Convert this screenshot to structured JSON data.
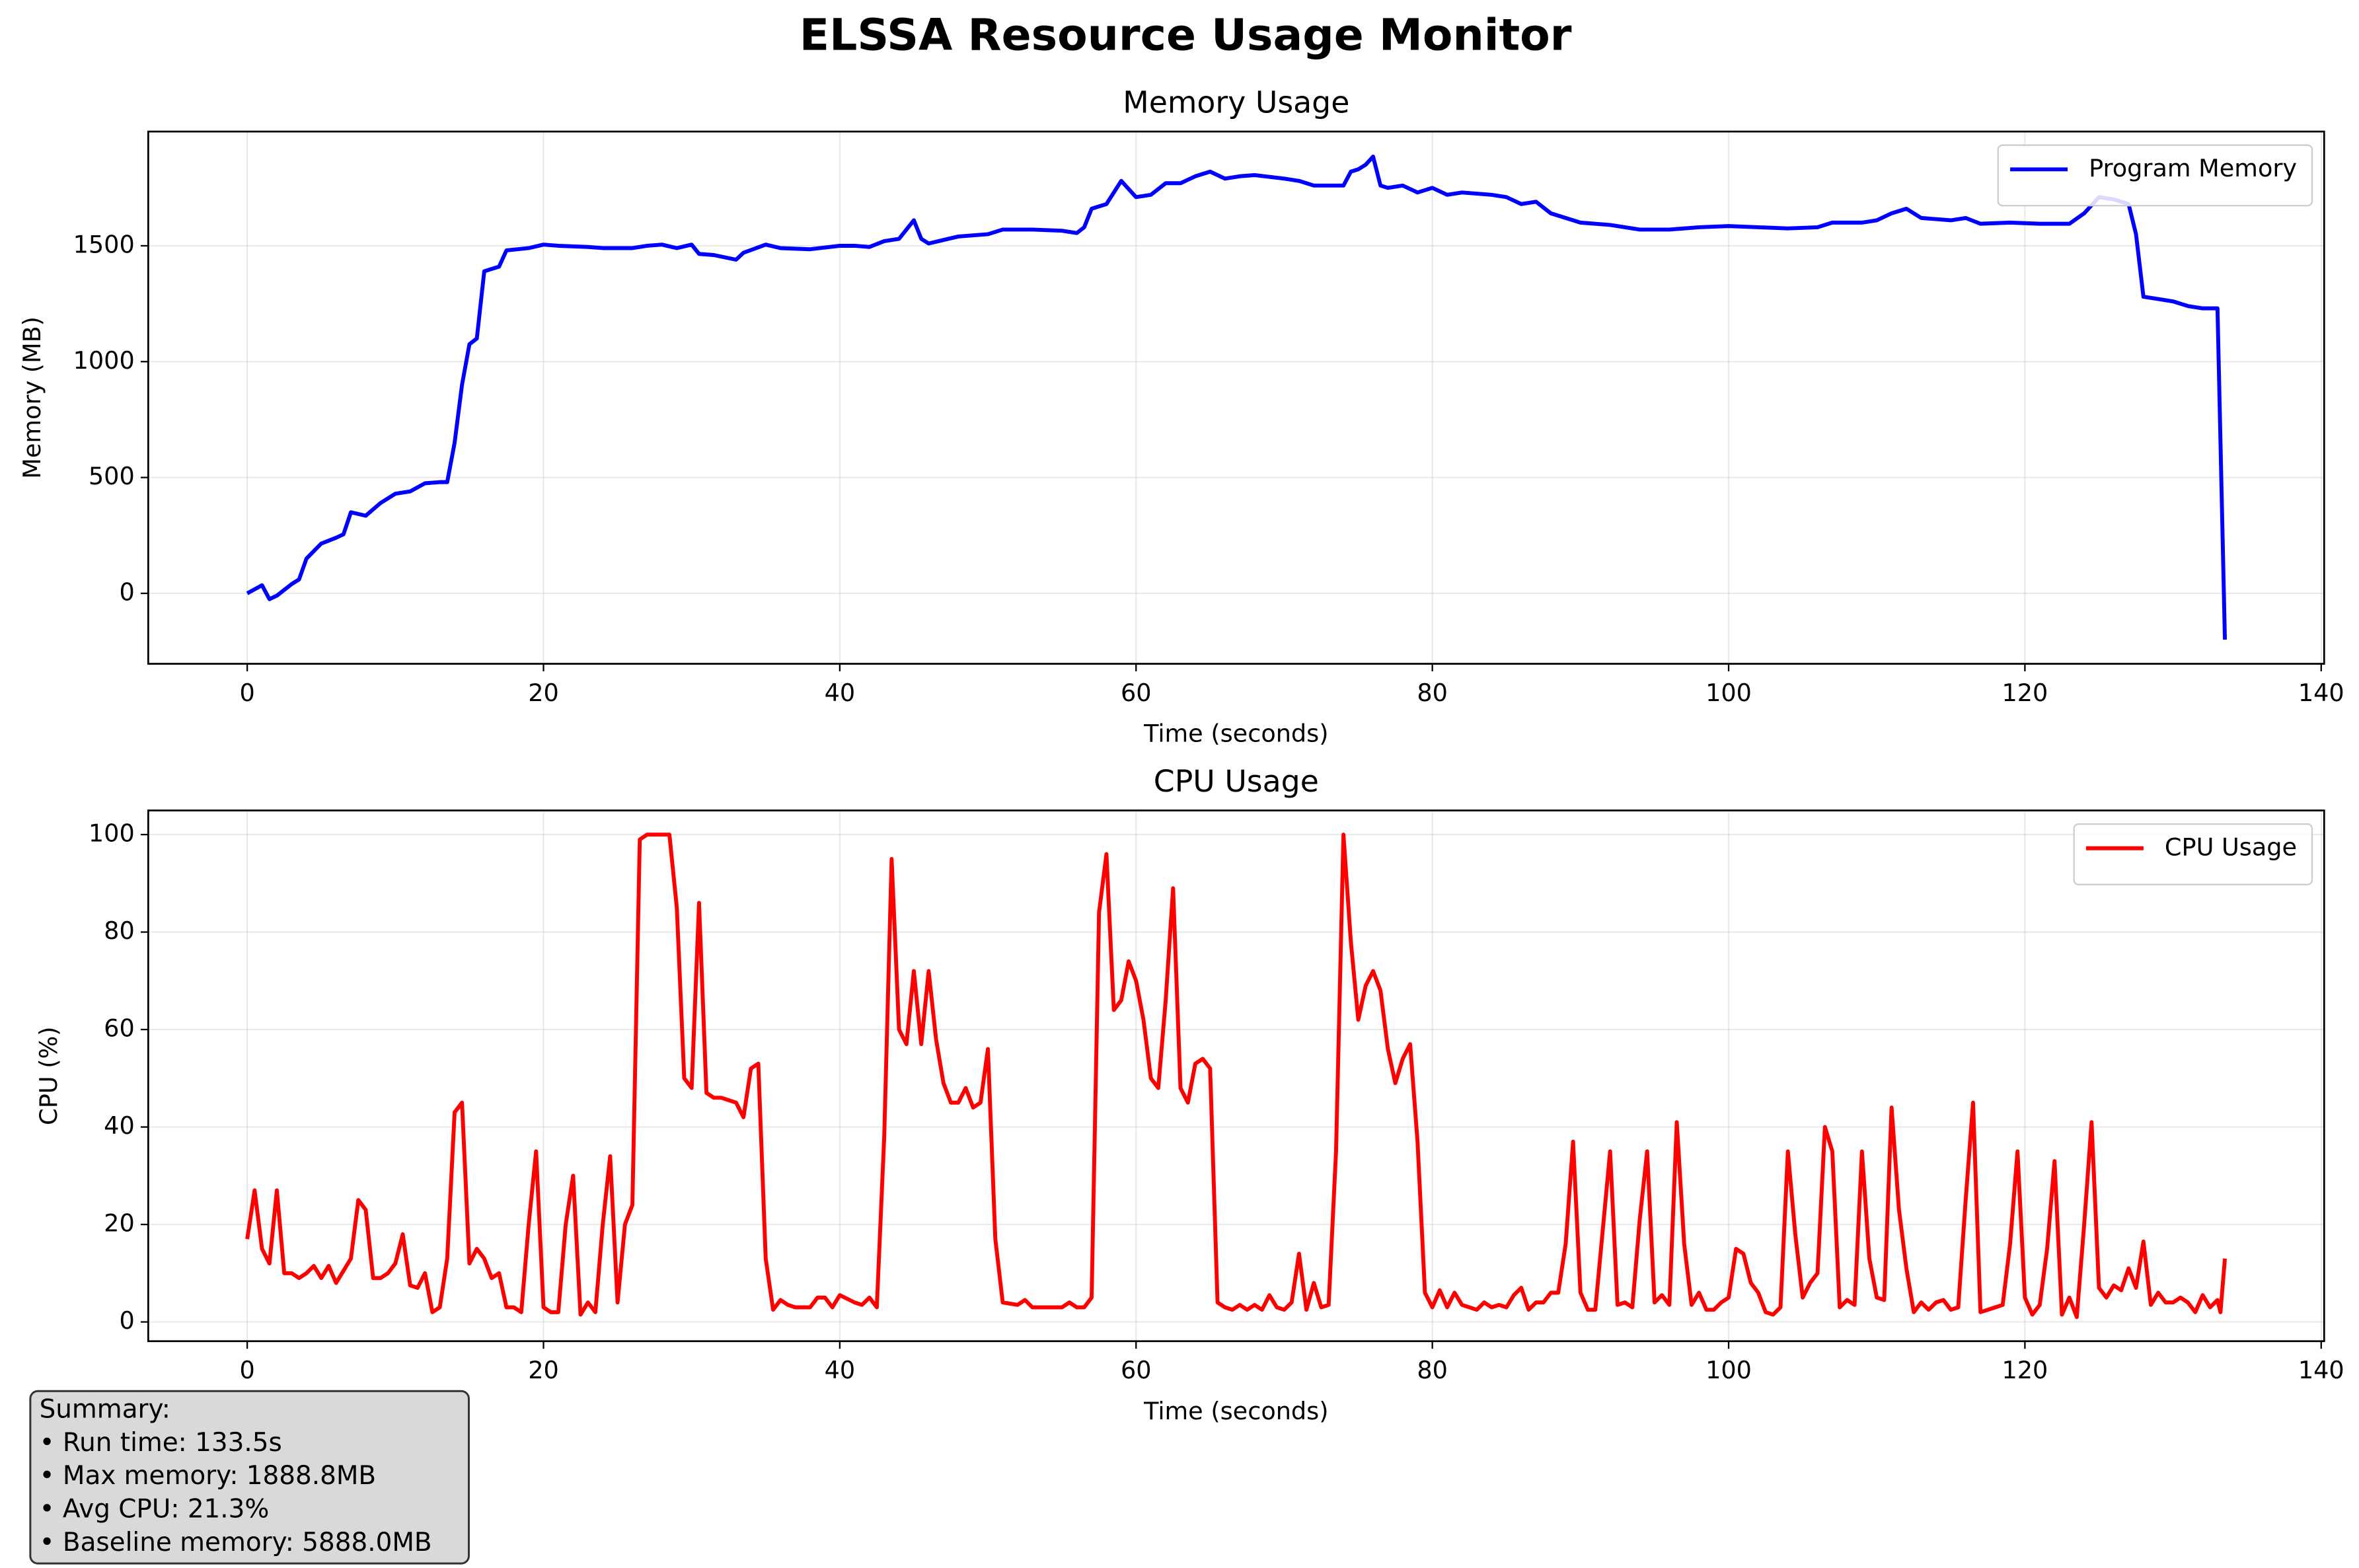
{
  "title": "ELSSA Resource Usage Monitor",
  "summary": [
    "Summary:",
    "• Run time: 133.5s",
    "• Max memory: 1888.8MB",
    "• Avg CPU: 21.3%",
    "• Baseline memory: 5888.0MB"
  ],
  "chart_data": [
    {
      "type": "line",
      "title": "Memory Usage",
      "x_label": "Time (seconds)",
      "y_label": "Memory (MB)",
      "xlim": [
        -6.68,
        140.2
      ],
      "ylim": [
        -304,
        1993
      ],
      "xticks": [
        0,
        20,
        40,
        60,
        80,
        100,
        120,
        140
      ],
      "yticks": [
        0,
        500,
        1000,
        1500
      ],
      "grid": true,
      "legend": "upper right",
      "x": [
        0,
        1,
        1.5,
        2,
        3,
        3.5,
        4,
        5,
        6,
        6.5,
        7,
        8,
        9,
        10,
        11,
        12,
        13,
        13.5,
        14,
        14.5,
        15,
        15.5,
        16,
        17,
        17.5,
        19,
        20,
        21,
        23,
        24,
        26,
        27,
        28,
        29,
        30,
        30.5,
        31.5,
        33,
        33.5,
        35,
        36,
        38,
        40,
        41,
        42,
        43,
        44,
        45,
        45.5,
        46,
        47,
        48,
        50,
        51,
        53,
        55,
        56,
        56.5,
        57,
        58,
        59,
        60,
        61,
        62,
        63,
        64,
        65,
        66,
        67,
        68,
        70,
        71,
        72,
        73,
        74,
        74.5,
        75,
        75.5,
        76,
        76.5,
        77,
        78,
        79,
        80,
        81,
        82,
        84,
        85,
        86,
        87,
        88,
        89,
        90,
        92,
        94,
        96,
        98,
        100,
        102,
        104,
        106,
        107,
        109,
        110,
        111,
        112,
        113,
        115,
        116,
        117,
        119,
        121,
        123,
        124,
        125,
        126,
        127,
        127.5,
        128,
        129,
        130,
        131,
        132,
        133,
        133.5
      ],
      "series": [
        {
          "name": "Program Memory",
          "color": "#0000ff",
          "values": [
            0,
            35,
            -25,
            -10,
            40,
            60,
            150,
            215,
            240,
            255,
            350,
            335,
            390,
            430,
            440,
            475,
            480,
            480,
            650,
            900,
            1075,
            1100,
            1390,
            1410,
            1480,
            1490,
            1505,
            1500,
            1495,
            1490,
            1490,
            1500,
            1505,
            1490,
            1505,
            1465,
            1460,
            1440,
            1470,
            1505,
            1490,
            1485,
            1500,
            1500,
            1495,
            1520,
            1530,
            1610,
            1530,
            1510,
            1525,
            1540,
            1550,
            1570,
            1570,
            1565,
            1555,
            1580,
            1660,
            1680,
            1780,
            1710,
            1720,
            1770,
            1770,
            1800,
            1820,
            1790,
            1800,
            1805,
            1790,
            1780,
            1760,
            1760,
            1760,
            1820,
            1830,
            1850,
            1885,
            1760,
            1750,
            1760,
            1730,
            1750,
            1720,
            1730,
            1720,
            1710,
            1680,
            1690,
            1640,
            1620,
            1600,
            1590,
            1570,
            1570,
            1580,
            1585,
            1580,
            1575,
            1580,
            1600,
            1600,
            1610,
            1640,
            1660,
            1620,
            1610,
            1620,
            1595,
            1600,
            1595,
            1595,
            1640,
            1710,
            1700,
            1680,
            1550,
            1280,
            1270,
            1260,
            1240,
            1230,
            1230,
            -200
          ]
        }
      ]
    },
    {
      "type": "line",
      "title": "CPU Usage",
      "x_label": "Time (seconds)",
      "y_label": "CPU (%)",
      "xlim": [
        -6.68,
        140.2
      ],
      "ylim": [
        -3.95,
        104.95
      ],
      "xticks": [
        0,
        20,
        40,
        60,
        80,
        100,
        120,
        140
      ],
      "yticks": [
        0,
        20,
        40,
        60,
        80,
        100
      ],
      "grid": true,
      "legend": "upper right",
      "x": [
        0,
        0.5,
        1,
        1.5,
        2,
        2.5,
        3,
        3.5,
        4,
        4.5,
        5,
        5.5,
        6,
        7,
        7.5,
        8,
        8.5,
        9,
        9.5,
        10,
        10.5,
        11,
        11.5,
        12,
        12.5,
        13,
        13.5,
        14,
        14.5,
        15,
        15.5,
        16,
        16.5,
        17,
        17.5,
        18,
        18.5,
        19,
        19.5,
        20,
        20.5,
        21,
        21.5,
        22,
        22.5,
        23,
        23.5,
        24,
        24.5,
        25,
        25.5,
        26,
        26.5,
        27,
        28,
        28.5,
        29,
        29.5,
        30,
        30.5,
        31,
        31.5,
        32,
        33,
        33.5,
        34,
        34.5,
        35,
        35.5,
        36,
        36.5,
        37,
        38,
        38.5,
        39,
        39.5,
        40,
        41,
        41.5,
        42,
        42.5,
        43,
        43.5,
        44,
        44.5,
        45,
        45.5,
        46,
        46.5,
        47,
        47.5,
        48,
        48.5,
        49,
        49.5,
        50,
        50.5,
        51,
        52,
        52.5,
        53,
        54,
        55,
        55.5,
        56,
        56.5,
        57,
        57.5,
        58,
        58.5,
        59,
        59.5,
        60,
        60.5,
        61,
        61.5,
        62,
        62.5,
        63,
        63.5,
        64,
        64.5,
        65,
        65.5,
        66,
        66.5,
        67,
        67.5,
        68,
        68.5,
        69,
        69.5,
        70,
        70.5,
        71,
        71.5,
        72,
        72.5,
        73,
        73.5,
        74,
        74.5,
        75,
        75.5,
        76,
        76.5,
        77,
        77.5,
        78,
        78.5,
        79,
        79.5,
        80,
        80.5,
        81,
        81.5,
        82,
        83,
        83.5,
        84,
        84.5,
        85,
        85.5,
        86,
        86.5,
        87,
        87.5,
        88,
        88.5,
        89,
        89.5,
        90,
        90.5,
        91,
        92,
        92.5,
        93,
        93.5,
        94,
        94.5,
        95,
        95.5,
        96,
        96.5,
        97,
        97.5,
        98,
        98.5,
        99,
        99.5,
        100,
        100.5,
        101,
        101.5,
        102,
        102.5,
        103,
        103.5,
        104,
        104.5,
        105,
        105.5,
        106,
        106.5,
        107,
        107.5,
        108,
        108.5,
        109,
        109.5,
        110,
        110.5,
        111,
        111.5,
        112,
        112.5,
        113,
        113.5,
        114,
        114.5,
        115,
        115.5,
        116,
        116.5,
        117,
        117.5,
        118,
        118.5,
        119,
        119.5,
        120,
        120.5,
        121,
        121.5,
        122,
        122.5,
        123,
        123.5,
        124,
        124.5,
        125,
        125.5,
        126,
        126.5,
        127,
        127.5,
        128,
        128.5,
        129,
        129.5,
        130,
        130.5,
        131,
        131.5,
        132,
        132.5,
        133,
        133.2,
        133.5
      ],
      "series": [
        {
          "name": "CPU Usage",
          "color": "#ff0000",
          "values": [
            17,
            27,
            15,
            12,
            27,
            10,
            10,
            9,
            10,
            11.5,
            9,
            11.5,
            8,
            13,
            25,
            23,
            9,
            9,
            10,
            12,
            18,
            7.5,
            7,
            10,
            2,
            3,
            13,
            43,
            45,
            12,
            15,
            13,
            9,
            10,
            3,
            3,
            2,
            20,
            35,
            3,
            2,
            2,
            20,
            30,
            1.5,
            4,
            2,
            20,
            34,
            4,
            20,
            24,
            99,
            100,
            100,
            100,
            85,
            50,
            48,
            86,
            47,
            46,
            46,
            45,
            42,
            52,
            53,
            13,
            2.5,
            4.5,
            3.5,
            3,
            3,
            5,
            5,
            3,
            5.5,
            4,
            3.5,
            5,
            3,
            38,
            95,
            60,
            57,
            72,
            57,
            72,
            58,
            49,
            45,
            45,
            48,
            44,
            45,
            56,
            17,
            4,
            3.5,
            4.5,
            3,
            3,
            3,
            4,
            3,
            3,
            5,
            84,
            96,
            64,
            66,
            74,
            70,
            62,
            50,
            48,
            66,
            89,
            48,
            45,
            53,
            54,
            52,
            4,
            3,
            2.5,
            3.5,
            2.5,
            3.5,
            2.5,
            5.5,
            3,
            2.5,
            4,
            14,
            2.5,
            8,
            3,
            3.5,
            35,
            100,
            78,
            62,
            69,
            72,
            68,
            56,
            49,
            54,
            57,
            37,
            6,
            3,
            6.5,
            3,
            6,
            3.5,
            2.5,
            4,
            3,
            3.5,
            3,
            5.5,
            7,
            2.5,
            4,
            4,
            6,
            6,
            16,
            37,
            6,
            2.5,
            2.5,
            35,
            3.5,
            4,
            3,
            21,
            35,
            4,
            5.5,
            3.5,
            41,
            16,
            3.5,
            6,
            2.5,
            2.5,
            4,
            5,
            15,
            14,
            8,
            6,
            2,
            1.5,
            3,
            35,
            18,
            5,
            8,
            10,
            40,
            35,
            3,
            4.5,
            3.5,
            35,
            13,
            5,
            4.5,
            44,
            23,
            11,
            2,
            4,
            2.5,
            4,
            4.5,
            2.5,
            3,
            25,
            45,
            2,
            2.5,
            3,
            3.5,
            16,
            35,
            5,
            1.5,
            3.5,
            15,
            33,
            1.5,
            5,
            1,
            20,
            41,
            7,
            5,
            7.5,
            6.5,
            11,
            7,
            16.5,
            3.5,
            6,
            4,
            4,
            5,
            4,
            2,
            5.5,
            3,
            4.5,
            2,
            13
          ]
        }
      ]
    }
  ]
}
